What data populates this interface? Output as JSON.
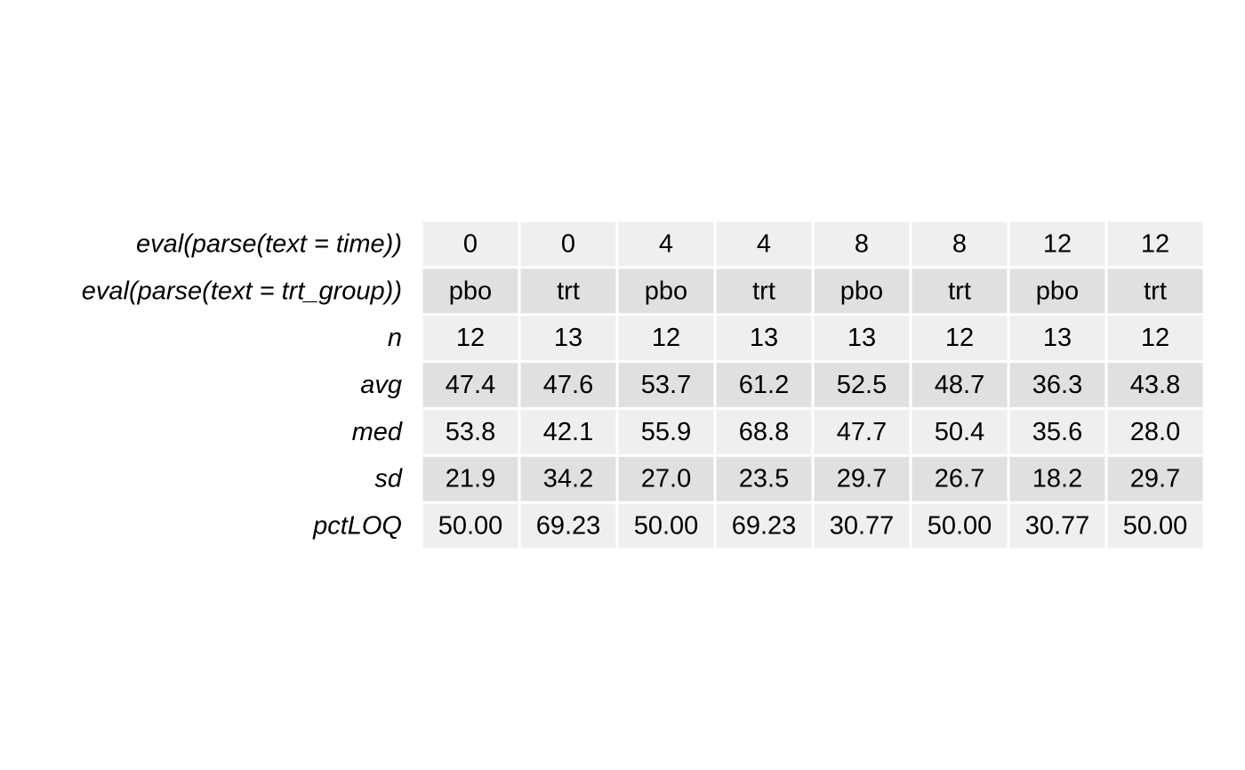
{
  "chart_data": {
    "type": "table",
    "title": "",
    "row_labels": [
      "eval(parse(text = time))",
      "eval(parse(text = trt_group))",
      "n",
      "avg",
      "med",
      "sd",
      "pctLOQ"
    ],
    "rows": [
      [
        "0",
        "0",
        "4",
        "4",
        "8",
        "8",
        "12",
        "12"
      ],
      [
        "pbo",
        "trt",
        "pbo",
        "trt",
        "pbo",
        "trt",
        "pbo",
        "trt"
      ],
      [
        "12",
        "13",
        "12",
        "13",
        "13",
        "12",
        "13",
        "12"
      ],
      [
        "47.4",
        "47.6",
        "53.7",
        "61.2",
        "52.5",
        "48.7",
        "36.3",
        "43.8"
      ],
      [
        "53.8",
        "42.1",
        "55.9",
        "68.8",
        "47.7",
        "50.4",
        "35.6",
        "28.0"
      ],
      [
        "21.9",
        "34.2",
        "27.0",
        "23.5",
        "29.7",
        "26.7",
        "18.2",
        "29.7"
      ],
      [
        "50.00",
        "69.23",
        "50.00",
        "69.23",
        "30.77",
        "50.00",
        "30.77",
        "50.00"
      ]
    ],
    "row_fill_colors": [
      "#efefef",
      "#e0e0e0"
    ],
    "grid_line_color": "#ffffff",
    "text_color": "#000000"
  }
}
